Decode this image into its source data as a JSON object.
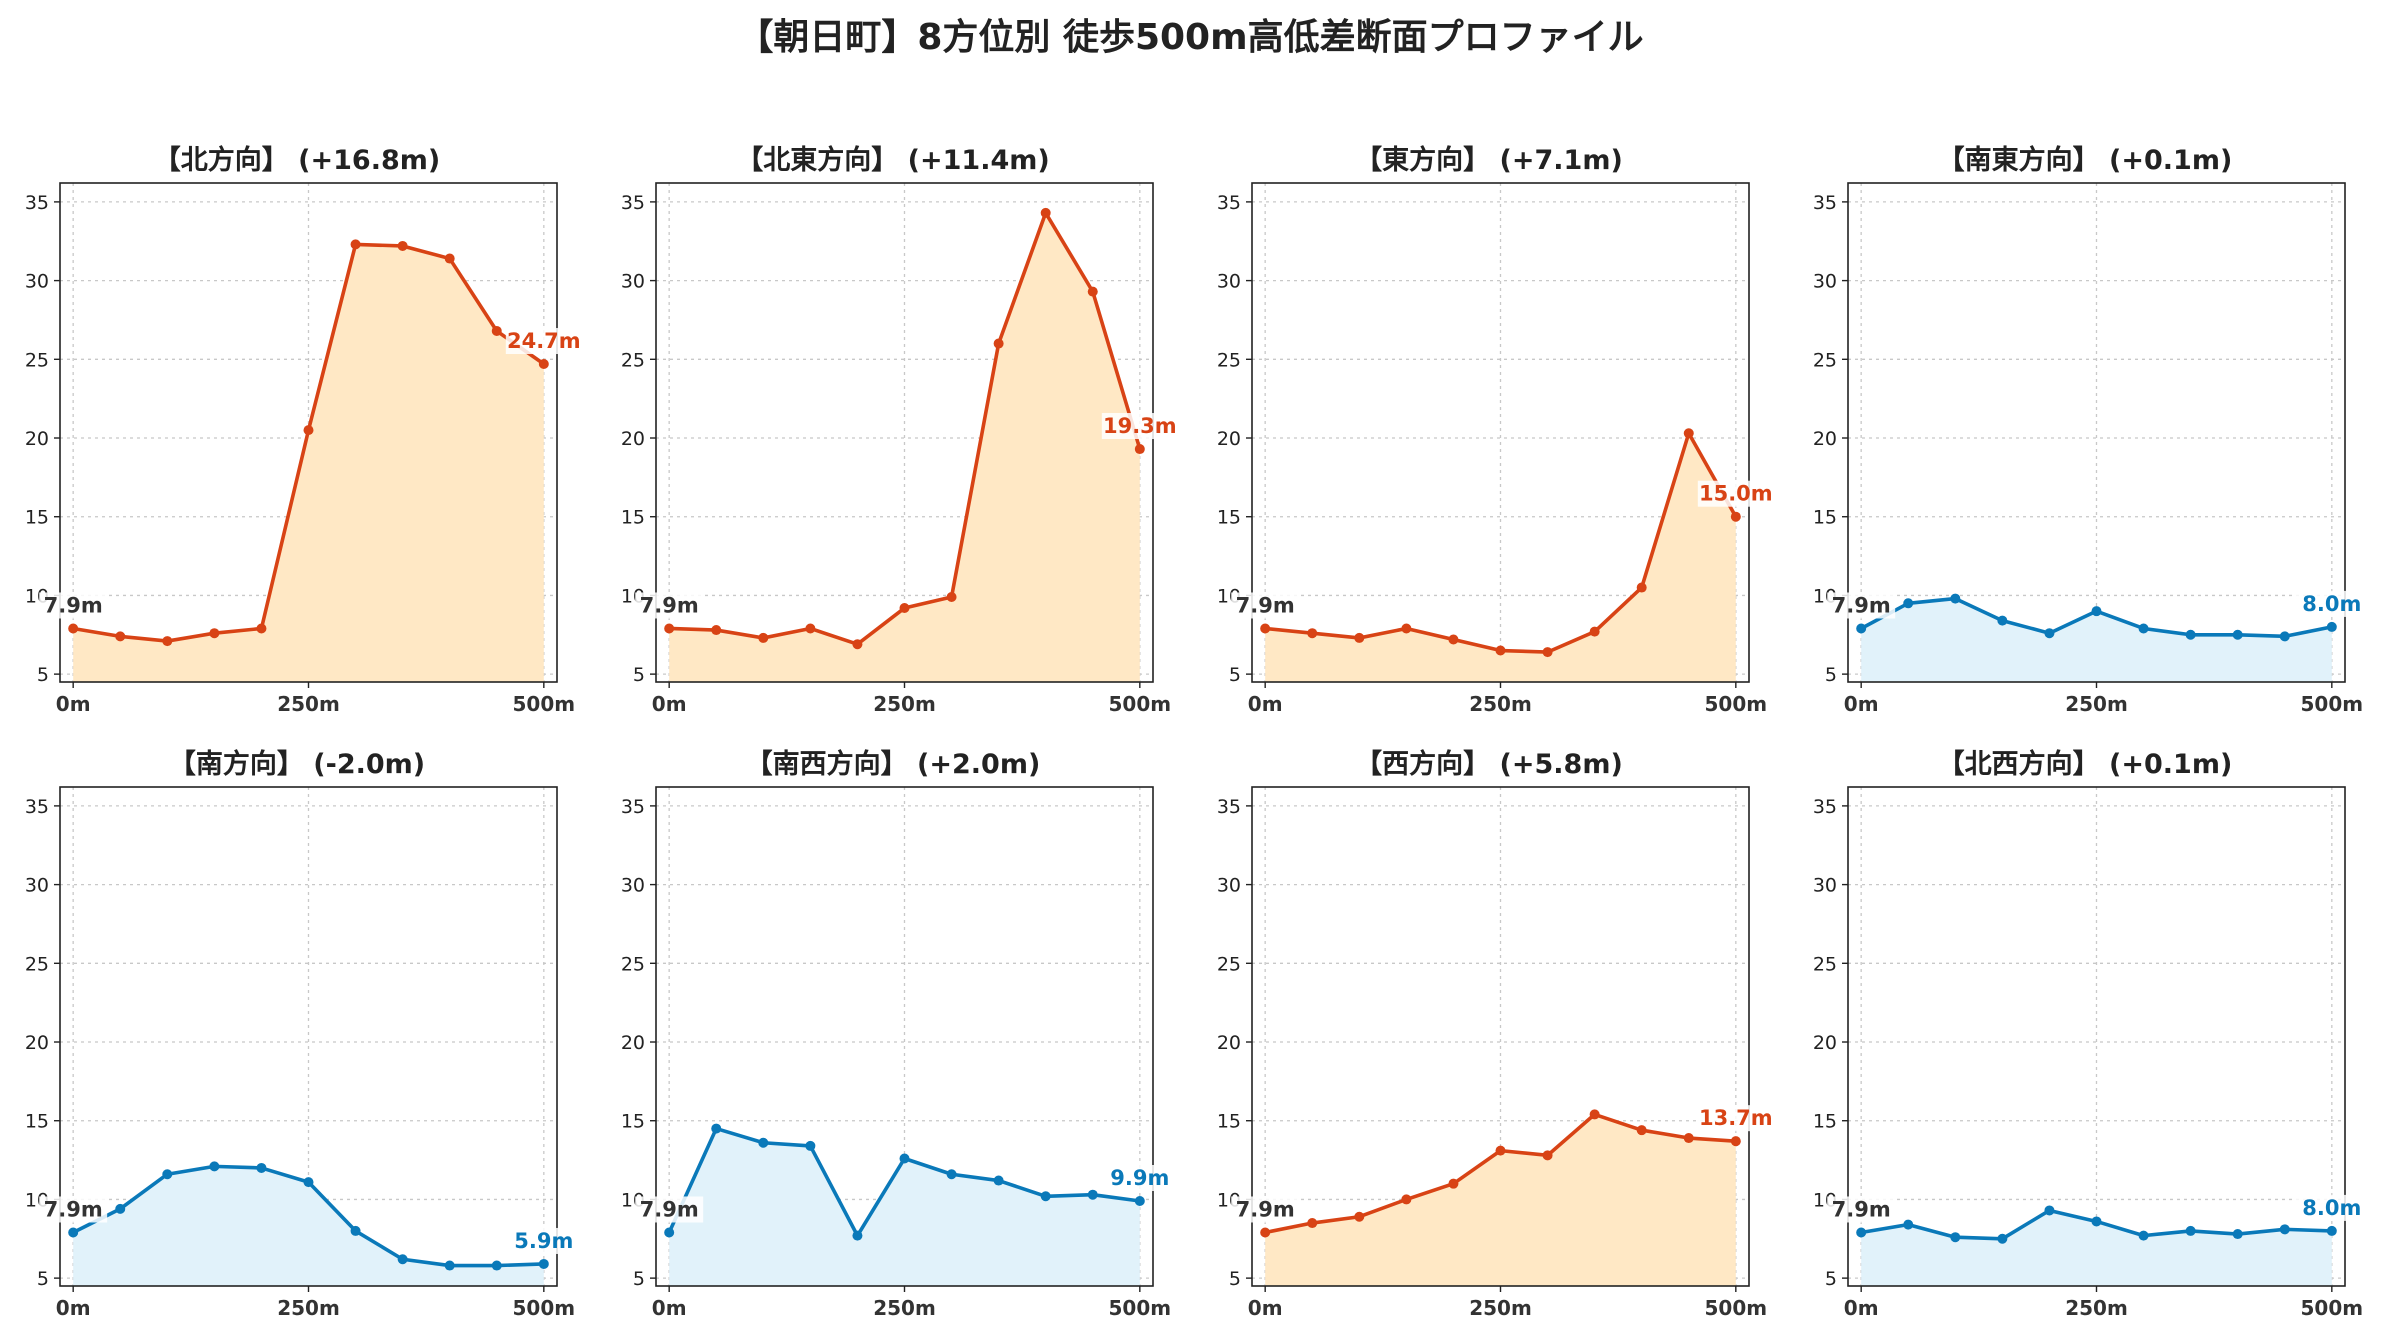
{
  "title": "【朝日町】8方位別 徒歩500m高低差断面プロファイル",
  "colors": {
    "up_line": "#d84315",
    "up_fill": "#ffe8c5",
    "down_line": "#0a79b9",
    "down_fill": "#e1f2fa",
    "start_label": "#333333",
    "grid": "#c8c8c8"
  },
  "chart_data": [
    {
      "type": "area",
      "title": "【北方向】 (+16.8m)",
      "trend": "up",
      "x": [
        0,
        50,
        100,
        150,
        200,
        250,
        300,
        350,
        400,
        450,
        500
      ],
      "values": [
        7.9,
        7.4,
        7.1,
        7.6,
        7.9,
        20.5,
        32.3,
        32.2,
        31.4,
        26.8,
        24.7
      ],
      "xticks": [
        "0m",
        "250m",
        "500m"
      ],
      "yticks": [
        "5",
        "10",
        "15",
        "20",
        "25",
        "30",
        "35"
      ],
      "ylim": [
        4.5,
        36.2
      ],
      "start_label": "7.9m",
      "end_label": "24.7m",
      "grid": true
    },
    {
      "type": "area",
      "title": "【北東方向】 (+11.4m)",
      "trend": "up",
      "x": [
        0,
        50,
        100,
        150,
        200,
        250,
        300,
        350,
        400,
        450,
        500
      ],
      "values": [
        7.9,
        7.8,
        7.3,
        7.9,
        6.9,
        9.2,
        9.9,
        26.0,
        34.3,
        29.3,
        19.3
      ],
      "xticks": [
        "0m",
        "250m",
        "500m"
      ],
      "yticks": [
        "5",
        "10",
        "15",
        "20",
        "25",
        "30",
        "35"
      ],
      "ylim": [
        4.5,
        36.2
      ],
      "start_label": "7.9m",
      "end_label": "19.3m",
      "grid": true
    },
    {
      "type": "area",
      "title": "【東方向】 (+7.1m)",
      "trend": "up",
      "x": [
        0,
        50,
        100,
        150,
        200,
        250,
        300,
        350,
        400,
        450,
        500
      ],
      "values": [
        7.9,
        7.6,
        7.3,
        7.9,
        7.2,
        6.5,
        6.4,
        7.7,
        10.5,
        20.3,
        15.0
      ],
      "xticks": [
        "0m",
        "250m",
        "500m"
      ],
      "yticks": [
        "5",
        "10",
        "15",
        "20",
        "25",
        "30",
        "35"
      ],
      "ylim": [
        4.5,
        36.2
      ],
      "start_label": "7.9m",
      "end_label": "15.0m",
      "grid": true
    },
    {
      "type": "area",
      "title": "【南東方向】 (+0.1m)",
      "trend": "flat",
      "x": [
        0,
        50,
        100,
        150,
        200,
        250,
        300,
        350,
        400,
        450,
        500
      ],
      "values": [
        7.9,
        9.5,
        9.8,
        8.4,
        7.6,
        9.0,
        7.9,
        7.5,
        7.5,
        7.4,
        8.0
      ],
      "xticks": [
        "0m",
        "250m",
        "500m"
      ],
      "yticks": [
        "5",
        "10",
        "15",
        "20",
        "25",
        "30",
        "35"
      ],
      "ylim": [
        4.5,
        36.2
      ],
      "start_label": "7.9m",
      "end_label": "8.0m",
      "grid": true
    },
    {
      "type": "area",
      "title": "【南方向】 (-2.0m)",
      "trend": "flat",
      "x": [
        0,
        50,
        100,
        150,
        200,
        250,
        300,
        350,
        400,
        450,
        500
      ],
      "values": [
        7.9,
        9.4,
        11.6,
        12.1,
        12.0,
        11.1,
        8.0,
        6.2,
        5.8,
        5.8,
        5.9
      ],
      "xticks": [
        "0m",
        "250m",
        "500m"
      ],
      "yticks": [
        "5",
        "10",
        "15",
        "20",
        "25",
        "30",
        "35"
      ],
      "ylim": [
        4.5,
        36.2
      ],
      "start_label": "7.9m",
      "end_label": "5.9m",
      "grid": true
    },
    {
      "type": "area",
      "title": "【南西方向】 (+2.0m)",
      "trend": "flat",
      "x": [
        0,
        50,
        100,
        150,
        200,
        250,
        300,
        350,
        400,
        450,
        500
      ],
      "values": [
        7.9,
        14.5,
        13.6,
        13.4,
        7.7,
        12.6,
        11.6,
        11.2,
        10.2,
        10.3,
        9.9
      ],
      "xticks": [
        "0m",
        "250m",
        "500m"
      ],
      "yticks": [
        "5",
        "10",
        "15",
        "20",
        "25",
        "30",
        "35"
      ],
      "ylim": [
        4.5,
        36.2
      ],
      "start_label": "7.9m",
      "end_label": "9.9m",
      "grid": true
    },
    {
      "type": "area",
      "title": "【西方向】 (+5.8m)",
      "trend": "up",
      "x": [
        0,
        50,
        100,
        150,
        200,
        250,
        300,
        350,
        400,
        450,
        500
      ],
      "values": [
        7.9,
        8.5,
        8.9,
        10.0,
        11.0,
        13.1,
        12.8,
        15.4,
        14.4,
        13.9,
        13.7
      ],
      "xticks": [
        "0m",
        "250m",
        "500m"
      ],
      "yticks": [
        "5",
        "10",
        "15",
        "20",
        "25",
        "30",
        "35"
      ],
      "ylim": [
        4.5,
        36.2
      ],
      "start_label": "7.9m",
      "end_label": "13.7m",
      "grid": true
    },
    {
      "type": "area",
      "title": "【北西方向】 (+0.1m)",
      "trend": "flat",
      "x": [
        0,
        50,
        100,
        150,
        200,
        250,
        300,
        350,
        400,
        450,
        500
      ],
      "values": [
        7.9,
        8.4,
        7.6,
        7.5,
        9.3,
        8.6,
        7.7,
        8.0,
        7.8,
        8.1,
        8.0
      ],
      "xticks": [
        "0m",
        "250m",
        "500m"
      ],
      "yticks": [
        "5",
        "10",
        "15",
        "20",
        "25",
        "30",
        "35"
      ],
      "ylim": [
        4.5,
        36.2
      ],
      "start_label": "7.9m",
      "end_label": "8.0m",
      "grid": true
    }
  ]
}
